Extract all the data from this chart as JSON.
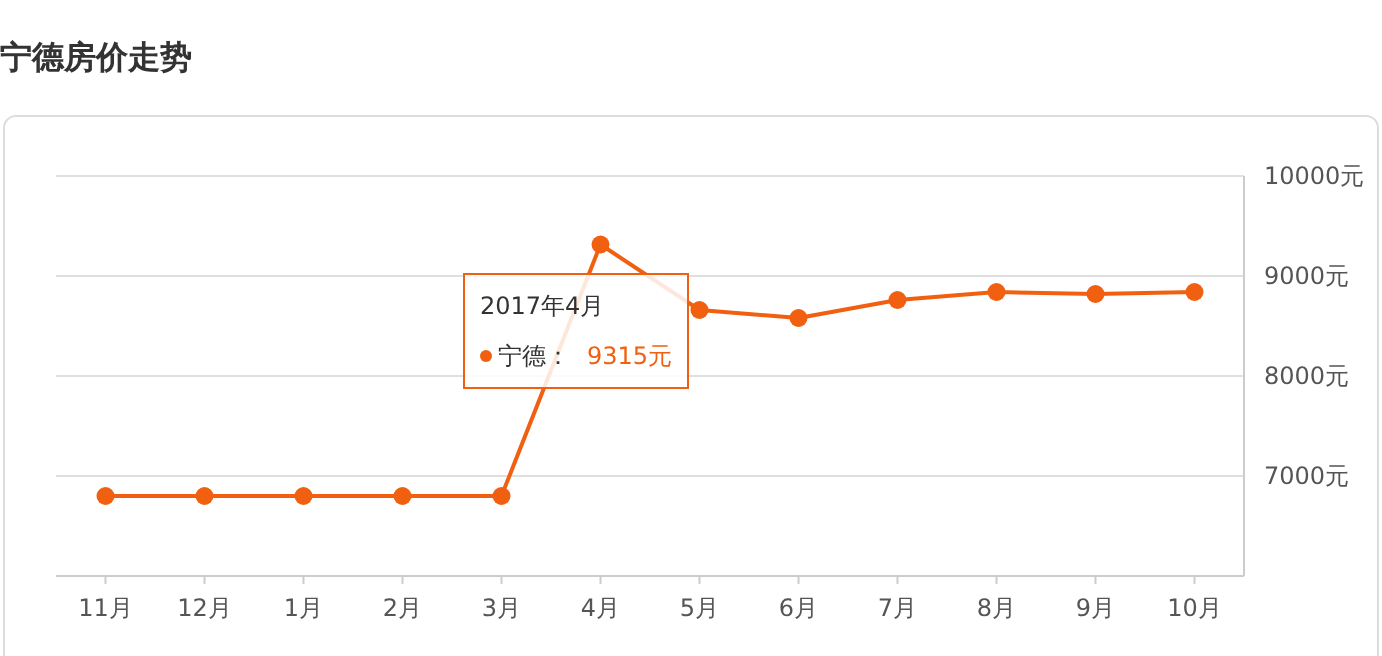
{
  "chart_data": {
    "type": "line",
    "title": "宁德房价走势",
    "categories": [
      "11月",
      "12月",
      "1月",
      "2月",
      "3月",
      "4月",
      "5月",
      "6月",
      "7月",
      "8月",
      "9月",
      "10月"
    ],
    "series": [
      {
        "color": "#f06010",
        "values": [
          6800,
          6800,
          6800,
          6800,
          6800,
          9315,
          8660,
          8580,
          8760,
          8840,
          8820,
          8840
        ]
      }
    ],
    "ylim": [
      6000,
      10000
    ],
    "yticks": [
      {
        "value": 7000,
        "label": "7000元"
      },
      {
        "value": 8000,
        "label": "8000元"
      },
      {
        "value": 9000,
        "label": "9000元"
      },
      {
        "value": 10000,
        "label": "10000元"
      }
    ],
    "grid": "y",
    "marker": "circle",
    "line_style": "solid",
    "legend": false,
    "annotations": [
      "2017年4月",
      "宁德：",
      "9315元"
    ]
  }
}
